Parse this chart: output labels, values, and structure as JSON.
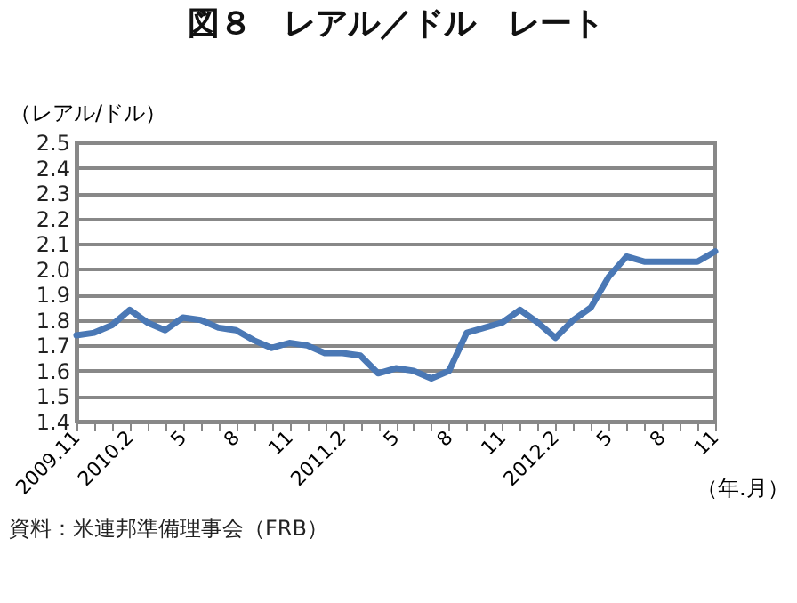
{
  "chart_data": {
    "type": "line",
    "title": "図８　レアル／ドル　レート",
    "ylabel": "（レアル/ドル）",
    "xlabel": "（年.月）",
    "annotations": [
      "資料：米連邦準備理事会（FRB）"
    ],
    "categories": [
      "2009.11",
      null,
      null,
      "2010.2",
      null,
      null,
      "5",
      null,
      null,
      "8",
      null,
      null,
      "11",
      null,
      null,
      "2011.2",
      null,
      null,
      "5",
      null,
      null,
      "8",
      null,
      null,
      "11",
      null,
      null,
      "2012.2",
      null,
      null,
      "5",
      null,
      null,
      "8",
      null,
      null,
      "11"
    ],
    "series": [
      {
        "color": "#4a78b5",
        "values": [
          1.74,
          1.75,
          1.78,
          1.84,
          1.79,
          1.76,
          1.81,
          1.8,
          1.77,
          1.76,
          1.72,
          1.69,
          1.71,
          1.7,
          1.67,
          1.67,
          1.66,
          1.59,
          1.61,
          1.6,
          1.57,
          1.6,
          1.75,
          1.77,
          1.79,
          1.84,
          1.79,
          1.73,
          1.8,
          1.85,
          1.97,
          2.05,
          2.03,
          2.03,
          2.03,
          2.03,
          2.07
        ]
      }
    ],
    "ylim": [
      1.4,
      2.5
    ],
    "yticks": [
      1.4,
      1.5,
      1.6,
      1.7,
      1.8,
      1.9,
      {
        "value": 2.0,
        "label": "2.0"
      },
      2.1,
      2.2,
      2.3,
      2.4,
      2.5
    ],
    "grid": "y",
    "marker": "none",
    "line_style": "solid"
  }
}
